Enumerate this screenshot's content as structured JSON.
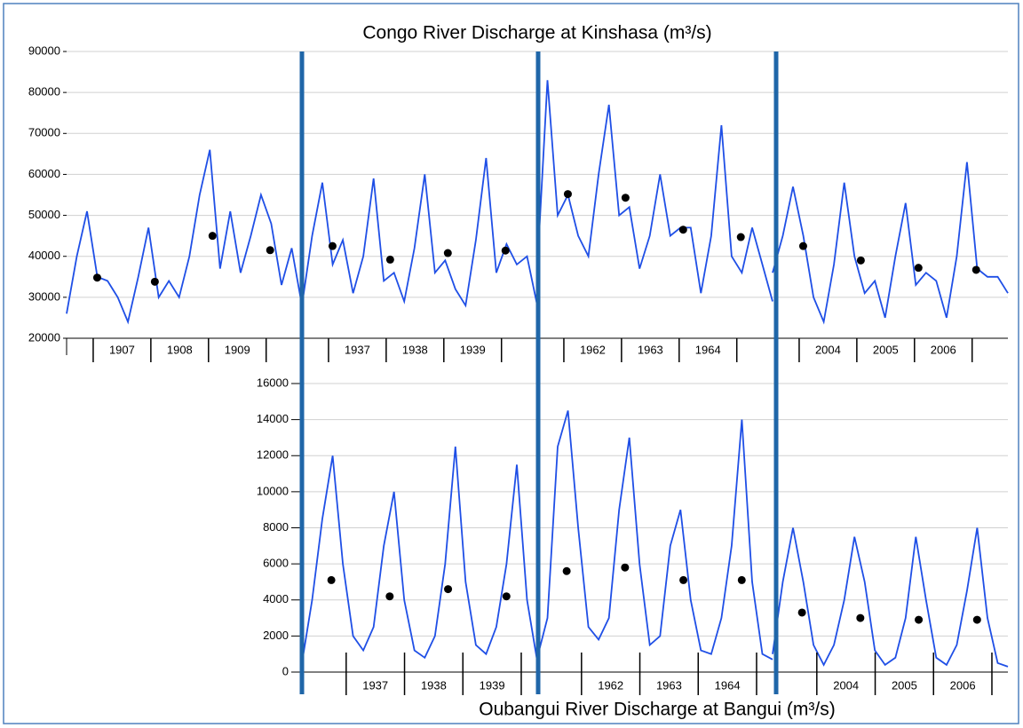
{
  "chart_data": [
    {
      "type": "line",
      "title": "Congo River Discharge at Kinshasa (m³/s)",
      "color": "#1f4fe6",
      "mean_color": "#000000",
      "ylim": [
        20000,
        90000
      ],
      "yticks": [
        20000,
        30000,
        40000,
        50000,
        60000,
        70000,
        80000,
        90000
      ],
      "grid": true,
      "panels": [
        {
          "categories": [
            "1907",
            "1908",
            "1909"
          ],
          "values": [
            26000,
            40000,
            51000,
            35000,
            34000,
            30000,
            24000,
            35000,
            47000,
            30000,
            34000,
            30000,
            40000,
            55000,
            66000,
            37000,
            51000,
            36000,
            45000,
            55000,
            48000,
            33000,
            42000,
            28000
          ],
          "mean_values": [
            34800,
            33800,
            45000,
            41500
          ]
        },
        {
          "categories": [
            "1937",
            "1938",
            "1939"
          ],
          "values": [
            28000,
            45000,
            58000,
            38000,
            44000,
            31000,
            40000,
            59000,
            34000,
            36000,
            29000,
            42000,
            60000,
            36000,
            39000,
            32000,
            28000,
            44000,
            64000,
            36000,
            43000,
            38000,
            40000,
            28000
          ],
          "mean_values": [
            42500,
            39200,
            40800,
            41400
          ]
        },
        {
          "categories": [
            "1962",
            "1963",
            "1964"
          ],
          "values": [
            37000,
            83000,
            50000,
            55000,
            45000,
            40000,
            60000,
            77000,
            50000,
            52000,
            37000,
            45000,
            60000,
            45000,
            47000,
            47000,
            31000,
            45000,
            72000,
            40000,
            36000,
            47000,
            38000,
            29000
          ],
          "mean_values": [
            55200,
            54300,
            46500,
            44700
          ]
        },
        {
          "categories": [
            "2004",
            "2005",
            "2006"
          ],
          "values": [
            36000,
            45000,
            57000,
            45000,
            30000,
            24000,
            38000,
            58000,
            40000,
            31000,
            34000,
            25000,
            40000,
            53000,
            33000,
            36000,
            34000,
            25000,
            40000,
            63000,
            37000,
            35000,
            35000,
            31000
          ],
          "mean_values": [
            42500,
            39000,
            37200,
            36700
          ]
        }
      ]
    },
    {
      "type": "line",
      "title": "Oubangui River Discharge at Bangui (m³/s)",
      "color": "#1f4fe6",
      "mean_color": "#000000",
      "ylim": [
        0,
        16000
      ],
      "yticks": [
        0,
        2000,
        4000,
        6000,
        8000,
        10000,
        12000,
        14000,
        16000
      ],
      "grid": true,
      "panels": [
        {
          "categories": [
            "1937",
            "1938",
            "1939"
          ],
          "values": [
            500,
            4000,
            8500,
            12000,
            6000,
            2000,
            1200,
            2500,
            7000,
            10000,
            4000,
            1200,
            800,
            2000,
            6000,
            12500,
            5000,
            1500,
            1000,
            2500,
            6000,
            11500,
            4000,
            600
          ],
          "mean_values": [
            5100,
            4200,
            4600,
            4200
          ]
        },
        {
          "categories": [
            "1962",
            "1963",
            "1964"
          ],
          "values": [
            800,
            3000,
            12500,
            14500,
            8000,
            2500,
            1800,
            3000,
            9000,
            13000,
            6000,
            1500,
            2000,
            7000,
            9000,
            4000,
            1200,
            1000,
            3000,
            7000,
            14000,
            5000,
            1000,
            700
          ],
          "mean_values": [
            5600,
            5800,
            5100,
            5100
          ]
        },
        {
          "categories": [
            "2004",
            "2005",
            "2006"
          ],
          "values": [
            1000,
            5000,
            8000,
            5000,
            1500,
            400,
            1500,
            4000,
            7500,
            5000,
            1200,
            400,
            800,
            3000,
            7500,
            4000,
            800,
            400,
            1500,
            4500,
            8000,
            3000,
            500,
            300
          ],
          "mean_values": [
            3300,
            3000,
            2900,
            2900
          ]
        }
      ]
    }
  ]
}
